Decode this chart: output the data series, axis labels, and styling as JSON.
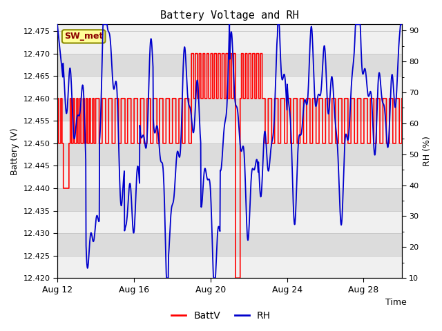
{
  "title": "Battery Voltage and RH",
  "xlabel": "Time",
  "ylabel_left": "Battery (V)",
  "ylabel_right": "RH (%)",
  "annotation": "SW_met",
  "ylim_left": [
    12.42,
    12.4765
  ],
  "ylim_right": [
    10,
    92
  ],
  "yticks_left": [
    12.42,
    12.425,
    12.43,
    12.435,
    12.44,
    12.445,
    12.45,
    12.455,
    12.46,
    12.465,
    12.47,
    12.475
  ],
  "yticks_right": [
    10,
    20,
    30,
    40,
    50,
    60,
    70,
    80,
    90
  ],
  "xtick_labels": [
    "Aug 12",
    "Aug 16",
    "Aug 20",
    "Aug 24",
    "Aug 28"
  ],
  "xtick_positions": [
    0,
    4,
    8,
    12,
    16
  ],
  "n_days": 18,
  "bg_color": "#ffffff",
  "plot_bg_light": "#f0f0f0",
  "plot_bg_dark": "#dcdcdc",
  "grid_color": "#c8c8c8",
  "batt_color": "#ff0000",
  "rh_color": "#0000cc",
  "legend_batt": "BattV",
  "legend_rh": "RH",
  "annotation_fg": "#8b0000",
  "annotation_bg": "#ffff99",
  "annotation_edge": "#8b8b00"
}
